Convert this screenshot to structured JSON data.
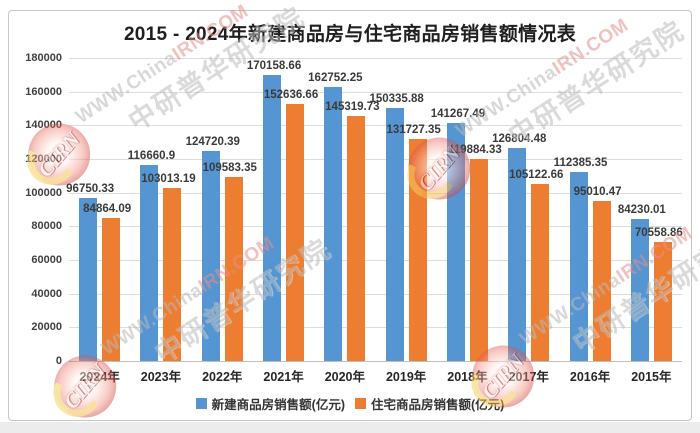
{
  "chart_data": {
    "type": "bar",
    "title": "2015 - 2024年新建商品房与住宅商品房销售额情况表",
    "categories": [
      "2024年",
      "2023年",
      "2022年",
      "2021年",
      "2020年",
      "2019年",
      "2018年",
      "2017年",
      "2016年",
      "2015年"
    ],
    "series": [
      {
        "name": "新建商品房销售额(亿元)",
        "color": "#5596D2",
        "values": [
          96750.33,
          116660.9,
          124720.39,
          170158.66,
          162752.25,
          150335.88,
          141267.49,
          126804.48,
          112385.35,
          84230.01
        ]
      },
      {
        "name": "住宅商品房销售额(亿元)",
        "color": "#ED7D31",
        "values": [
          84864.09,
          103013.19,
          109583.35,
          152636.66,
          145319.73,
          131727.35,
          119884.33,
          105122.66,
          95010.47,
          70558.86
        ]
      }
    ],
    "xlabel": "",
    "ylabel": "",
    "ylim": [
      0,
      180000
    ],
    "ytick_step": 20000,
    "grid": true,
    "legend_position": "bottom",
    "data_labels": true
  },
  "colors": {
    "gridline": "#dcdcdc",
    "axis_line": "#bfbfbf",
    "label_text": "#3a3a3a"
  },
  "watermark": {
    "site_prefix": "WWW.China",
    "site_suffix": "IRN.COM",
    "org": "中研普华研究院",
    "logo_text": "CIRN"
  }
}
